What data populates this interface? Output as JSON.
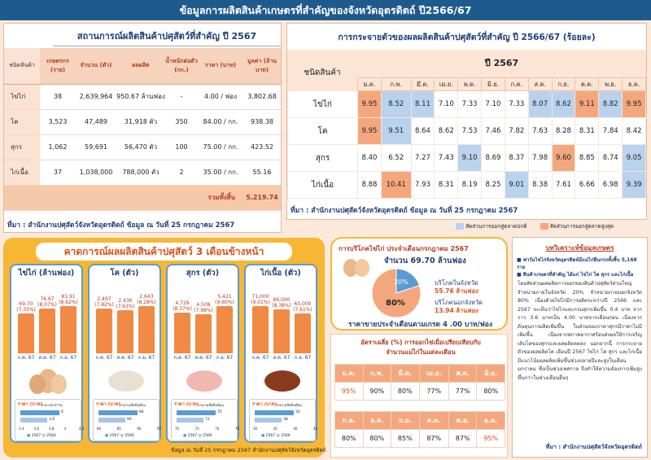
{
  "page": {
    "title": "ข้อมูลการผลิตสินค้าเกษตรที่สำคัญของจังหวัดอุตรดิตถ์ ปี2566/67"
  },
  "situation": {
    "heading": "สถานการณ์ผลิตสินค้าปศุสัตว์ที่สำคัญ ปี 2567",
    "columns": {
      "type": "ชนิดสินค้า",
      "farmers": "เกษตรกร (ราย)",
      "count": "จำนวน (ตัว)",
      "output": "ผลผลิต",
      "weight": "น้ำหนักต่อตัว (กก.)",
      "price": "ราคา (บาท)",
      "value": "มูลค่า (ล้านบาท)"
    },
    "rows": [
      {
        "name": "ไข่ไก่",
        "farmers": "38",
        "count": "2,639,964",
        "output": "950.67 ล้านฟอง",
        "weight": "-",
        "price": "4.00 / ฟอง",
        "value": "3,802.68"
      },
      {
        "name": "โค",
        "farmers": "3,523",
        "count": "47,489",
        "output": "31,918 ตัว",
        "weight": "350",
        "price": "84.00 / กก.",
        "value": "938.38"
      },
      {
        "name": "สุกร",
        "farmers": "1,062",
        "count": "59,691",
        "output": "56,470 ตัว",
        "weight": "100",
        "price": "75.00 / กก.",
        "value": "423.52"
      },
      {
        "name": "ไก่เนื้อ",
        "farmers": "37",
        "count": "1,038,000",
        "output": "788,000 ตัว",
        "weight": "2",
        "price": "35.00 / กก.",
        "value": "55.16"
      }
    ],
    "total_label": "รวมทั้งสิ้น",
    "total_value": "5,219.74",
    "source": "ที่มา : สำนักงานปศุสัตว์จังหวัดอุตรดิตถ์ ข้อมูล ณ วันที่ 25 กรกฎาคม 2567"
  },
  "distribution": {
    "heading": "การกระจายตัวของผลผลิตสินค้าปศุสัตว์ที่สำคัญ ปี 2566/67 (ร้อยละ)",
    "type_header": "ชนิดสินค้า",
    "year": "ปี 2567",
    "months": [
      "ม.ค.",
      "ก.พ.",
      "มี.ค.",
      "เม.ย.",
      "พ.ค.",
      "มิ.ย.",
      "ก.ค.",
      "ส.ค.",
      "ก.ย.",
      "ต.ค.",
      "พ.ย.",
      "ธ.ค."
    ],
    "rows": [
      {
        "name": "ไข่ไก่",
        "values": [
          "9.95",
          "8.52",
          "8.11",
          "7.10",
          "7.33",
          "7.10",
          "7.33",
          "8.07",
          "8.62",
          "9.11",
          "8.82",
          "9.95"
        ],
        "shade": [
          "o",
          "b",
          "b",
          "n",
          "n",
          "n",
          "n",
          "b",
          "b",
          "o",
          "b",
          "o"
        ]
      },
      {
        "name": "โค",
        "values": [
          "9.95",
          "9.51",
          "8.64",
          "8.62",
          "7.53",
          "7.46",
          "7.82",
          "7.63",
          "8.28",
          "8.31",
          "7.84",
          "8.42"
        ],
        "shade": [
          "o",
          "b",
          "n",
          "n",
          "n",
          "n",
          "n",
          "n",
          "n",
          "n",
          "n",
          "n"
        ]
      },
      {
        "name": "สุกร",
        "values": [
          "8.40",
          "6.52",
          "7.27",
          "7.43",
          "9.10",
          "8.69",
          "8.37",
          "7.98",
          "9.60",
          "8.85",
          "8.74",
          "9.05"
        ],
        "shade": [
          "n",
          "n",
          "n",
          "n",
          "b",
          "n",
          "n",
          "n",
          "o",
          "n",
          "n",
          "b"
        ]
      },
      {
        "name": "ไก่เนื้อ",
        "values": [
          "8.88",
          "10.41",
          "7.93",
          "8.31",
          "8.19",
          "8.25",
          "9.01",
          "8.38",
          "7.61",
          "6.66",
          "6.98",
          "9.39"
        ],
        "shade": [
          "n",
          "o",
          "n",
          "n",
          "n",
          "n",
          "b",
          "n",
          "n",
          "n",
          "n",
          "b"
        ]
      }
    ],
    "source": "ที่มา : สำนักงานปศุสัตว์จังหวัดอุตรดิตถ์ ข้อมูล ณ วันที่ 25 กรกฎาคม 2567",
    "legend_low": "สัดส่วนการออกสู่ตลาดปกติ",
    "legend_high": "สัดส่วนการออกสู่ตลาดสูงสุด",
    "colors": {
      "low": "#b9d3ee",
      "high": "#f4a77d"
    }
  },
  "forecast": {
    "heading": "คาดการณ์ผลผลิตสินค้าปศุสัตว์ 3 เดือนข้างหน้า",
    "cards": [
      {
        "title": "ไข่ไก่ (ล้านฟอง)",
        "values": [
          "69.70",
          "76.67",
          "81.91"
        ],
        "pcts": [
          "(7.33%)",
          "(8.07%)",
          "(8.62%)"
        ],
        "ratio": [
          0.85,
          0.94,
          1
        ],
        "months": [
          "ก.ค. 67",
          "ส.ค. 67",
          "ก.ย. 67"
        ],
        "price_label": "ราคา (บาท)",
        "price_note": "ราคาประจำวัน",
        "price_vals": [
          "4",
          "3.6"
        ],
        "axis": [
          "3.4",
          "3.6",
          "3.8",
          "4",
          "4.2"
        ],
        "legend": [
          "2567",
          "2566"
        ]
      },
      {
        "title": "โค (ตัว)",
        "values": [
          "2,497",
          "2,436",
          "2,643"
        ],
        "pcts": [
          "(7.82%)",
          "(7.63%)",
          "(8.28%)"
        ],
        "ratio": [
          0.94,
          0.92,
          1
        ],
        "months": [
          "ก.ค. 67",
          "ส.ค. 67",
          "ก.ย. 67"
        ],
        "price_label": "ราคา (บาท)",
        "price_note": "ราคาเฉลี่ยทั้งเดือน",
        "price_vals": [
          "84",
          "90"
        ],
        "axis": [
          "80",
          "85",
          "90",
          "95"
        ],
        "legend": [
          "2567",
          "2566"
        ]
      },
      {
        "title": "สุกร (ตัว)",
        "values": [
          "4,729",
          "4,508",
          "5,421"
        ],
        "pcts": [
          "(8.37%)",
          "(7.98%)",
          "(9.60%)"
        ],
        "ratio": [
          0.87,
          0.83,
          1
        ],
        "months": [
          "ก.ค. 67",
          "ส.ค. 67",
          "ก.ย. 67"
        ],
        "price_label": "ราคา (บาท)",
        "price_note": "ราคาเฉลี่ยทั้งเดือน",
        "price_vals": [
          "75",
          "72"
        ],
        "axis": [
          "70",
          "72",
          "74",
          "76"
        ],
        "legend": [
          "2567",
          "2566"
        ]
      },
      {
        "title": "ไก่เนื้อ (ตัว)",
        "values": [
          "71,000",
          "66,000",
          "60,000"
        ],
        "pcts": [
          "(9.01%)",
          "(8.38%)",
          "(7.61%)"
        ],
        "ratio": [
          1,
          0.93,
          0.85
        ],
        "months": [
          "ก.ค. 67",
          "ส.ค. 67",
          "ก.ย. 67"
        ],
        "price_label": "ราคา (บาท)",
        "price_note": "ราคาเฉลี่ยทั้งเดือน",
        "price_vals": [
          "35",
          "38"
        ],
        "axis": [
          "30",
          "35",
          "40",
          "45"
        ],
        "legend": [
          "2567",
          "2566"
        ]
      }
    ],
    "source": "ข้อมูล ณ วันที่ 25 กรกฎาคม 2567 สำนักงานปศุสัตว์จังหวัดอุตรดิตถ์"
  },
  "consumption": {
    "heading": "การบริโภคไข่ไก่ ประจำเดือนกรกฎาคม 2567",
    "amount": "จำนวน 69.70 ล้านฟอง",
    "pie": {
      "inside": 80,
      "outside": 20,
      "inside_label": "80%",
      "outside_label": "20%"
    },
    "in_label": "บริโภคในจังหวัด",
    "in_value": "55.76 ล้านฟอง",
    "out_label": "บริโภคนอกจังหวัด",
    "out_value": "13.94 ล้านฟอง",
    "price": "ราคาขายประจำเดือนตามเกรด 4 .00 บาท/ฟอง",
    "colors": {
      "inside": "#f4a77d",
      "outside": "#5b9bd5"
    }
  },
  "ratio": {
    "heading": "อัตราเฉลี่ย (%) การออกไข่เมื่อเปรียบเทียบกับจำนวนแม่ไก่ในแต่ละเดือน",
    "row1_months": [
      "ม.ค.",
      "ก.พ.",
      "มี.ค.",
      "เม.ย.",
      "พ.ค.",
      "มิ.ย."
    ],
    "row1_values": [
      "95%",
      "90%",
      "80%",
      "77%",
      "77%",
      "80%"
    ],
    "row2_months": [
      "ก.ค.",
      "ส.ค.",
      "ก.ย.",
      "ต.ค.",
      "พ.ย.",
      "ธ.ค."
    ],
    "row2_values": [
      "80%",
      "80%",
      "85%",
      "87%",
      "87%",
      "95%"
    ]
  },
  "analysis": {
    "heading": "บทวิเคราะห์ข้อมูลเกษตร",
    "bullets": [
      "ฟาร์มไข่ไก่จังหวัดอุตรดิตถ์มีแม่ไก่ยืนกรงทั้งสิ้น 5,168 ราย",
      "สินค้าเกษตรที่สำคัญ ได้แก่ ไข่ไก่ โค สุกร และไก่เนื้อ"
    ],
    "body": "โดยสัดส่วนผลผลิตการออกของสินค้าปศุสัตว์ส่วนใหญ่ จำหน่ายภายในจังหวัด 20% จำหน่ายภายนอกจังหวัด 80% เนื่องด้วยไข่ไก่มีการผลิตระหว่างปี 2566 และ 2567 จะเห็นว่าไข่ไก่และกรมสุกรเพิ่มขึ้น 0.4 บาท จากราว 3.6 บาทเป็น 4.00 บาทจากเดือนก่อน เนื่องจากต้นทุนการผลิตเพิ่มขึ้น ในส่วนของราคาสุกรมีราคาไม่มีเพิ่มขึ้น เนื่องจากสภาพอากาศร้อนส่งผลให้การเจริญเติบโตของสุกรและผลผลิตลดลง นอกจากนี้ การกระจายตัวของผลผลิตโค เดือนปี 2567 ไข่ไก่ โค สุกร และไก่เนื้อ มีแนวโน้มผลผลิตเพิ่มขึ้นช่วงปลายปีและสูงในเดือนมกราคม ซึ่งเป็นช่วงเทศกาล จึงทำให้ความต้องการเพิ่มสูงขึ้นกว่าในช่วงเดือนอื่นๆ",
    "source": "ที่มา : สำนักงานปศุสัตว์จังหวัดอุตรดิตถ์"
  }
}
